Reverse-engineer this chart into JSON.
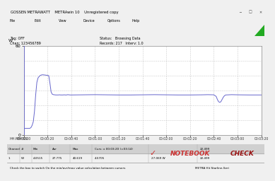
{
  "title": "GOSSEN METRAWATT    METRAwin 10    Unregistered copy",
  "tag_off": "Tag: OFF",
  "chan": "Chan: 123456789",
  "status": "Status:   Browsing Data",
  "records": "Records: 217   Interv: 1.0",
  "ylabel": "W",
  "xlabel_label": "HH:MM:SS",
  "ylim": [
    0,
    60
  ],
  "xlim_seconds": [
    0,
    200
  ],
  "x_tick_labels": [
    "00:00:00",
    "00:00:20",
    "00:00:40",
    "00:01:00",
    "00:01:20",
    "00:01:40",
    "00:02:00",
    "00:02:20",
    "00:02:40",
    "00:03:00",
    "00:03:20"
  ],
  "x_tick_positions": [
    0,
    20,
    40,
    60,
    80,
    100,
    120,
    140,
    160,
    180,
    200
  ],
  "cursor_line_x": 200,
  "bg_color": "#f0f0f0",
  "plot_bg": "#ffffff",
  "line_color": "#6666cc",
  "grid_color": "#cccccc",
  "cursor_color": "#333333",
  "table_bg": "#e8e8e8",
  "header_bg": "#d0d0d0",
  "bottom_bar_bg": "#d4d4d4",
  "title_bar_bg": "#d8d8d8",
  "green_triangle": "#22aa22",
  "nb_red": "#cc3333",
  "nb_dark": "#991111",
  "data_x": [
    0,
    1,
    2,
    3,
    4,
    5,
    6,
    7,
    8,
    9,
    10,
    11,
    12,
    13,
    14,
    15,
    16,
    17,
    18,
    19,
    20,
    21,
    22,
    23,
    24,
    25,
    26,
    27,
    28,
    29,
    30,
    31,
    32,
    33,
    34,
    35,
    36,
    37,
    38,
    39,
    40,
    50,
    60,
    70,
    80,
    90,
    100,
    110,
    120,
    130,
    140,
    150,
    155,
    160,
    162,
    163,
    164,
    165,
    166,
    167,
    168,
    169,
    170,
    175,
    180,
    190,
    200
  ],
  "data_y": [
    4.5,
    4.5,
    4.5,
    4.5,
    4.5,
    4.5,
    5.0,
    6.5,
    9.0,
    16.0,
    27.0,
    35.5,
    38.5,
    39.5,
    40.2,
    40.5,
    40.6,
    40.5,
    40.4,
    40.3,
    40.2,
    40.0,
    35.0,
    29.0,
    27.5,
    27.2,
    27.1,
    27.0,
    27.0,
    27.0,
    27.1,
    27.0,
    27.0,
    27.0,
    27.1,
    27.0,
    27.0,
    27.2,
    27.1,
    27.0,
    27.0,
    27.1,
    27.2,
    27.1,
    27.0,
    27.0,
    27.1,
    27.2,
    27.1,
    27.0,
    27.0,
    27.1,
    27.2,
    27.1,
    26.0,
    24.0,
    22.5,
    22.0,
    22.5,
    24.0,
    25.5,
    26.5,
    27.0,
    27.2,
    27.1,
    27.0,
    27.0
  ]
}
